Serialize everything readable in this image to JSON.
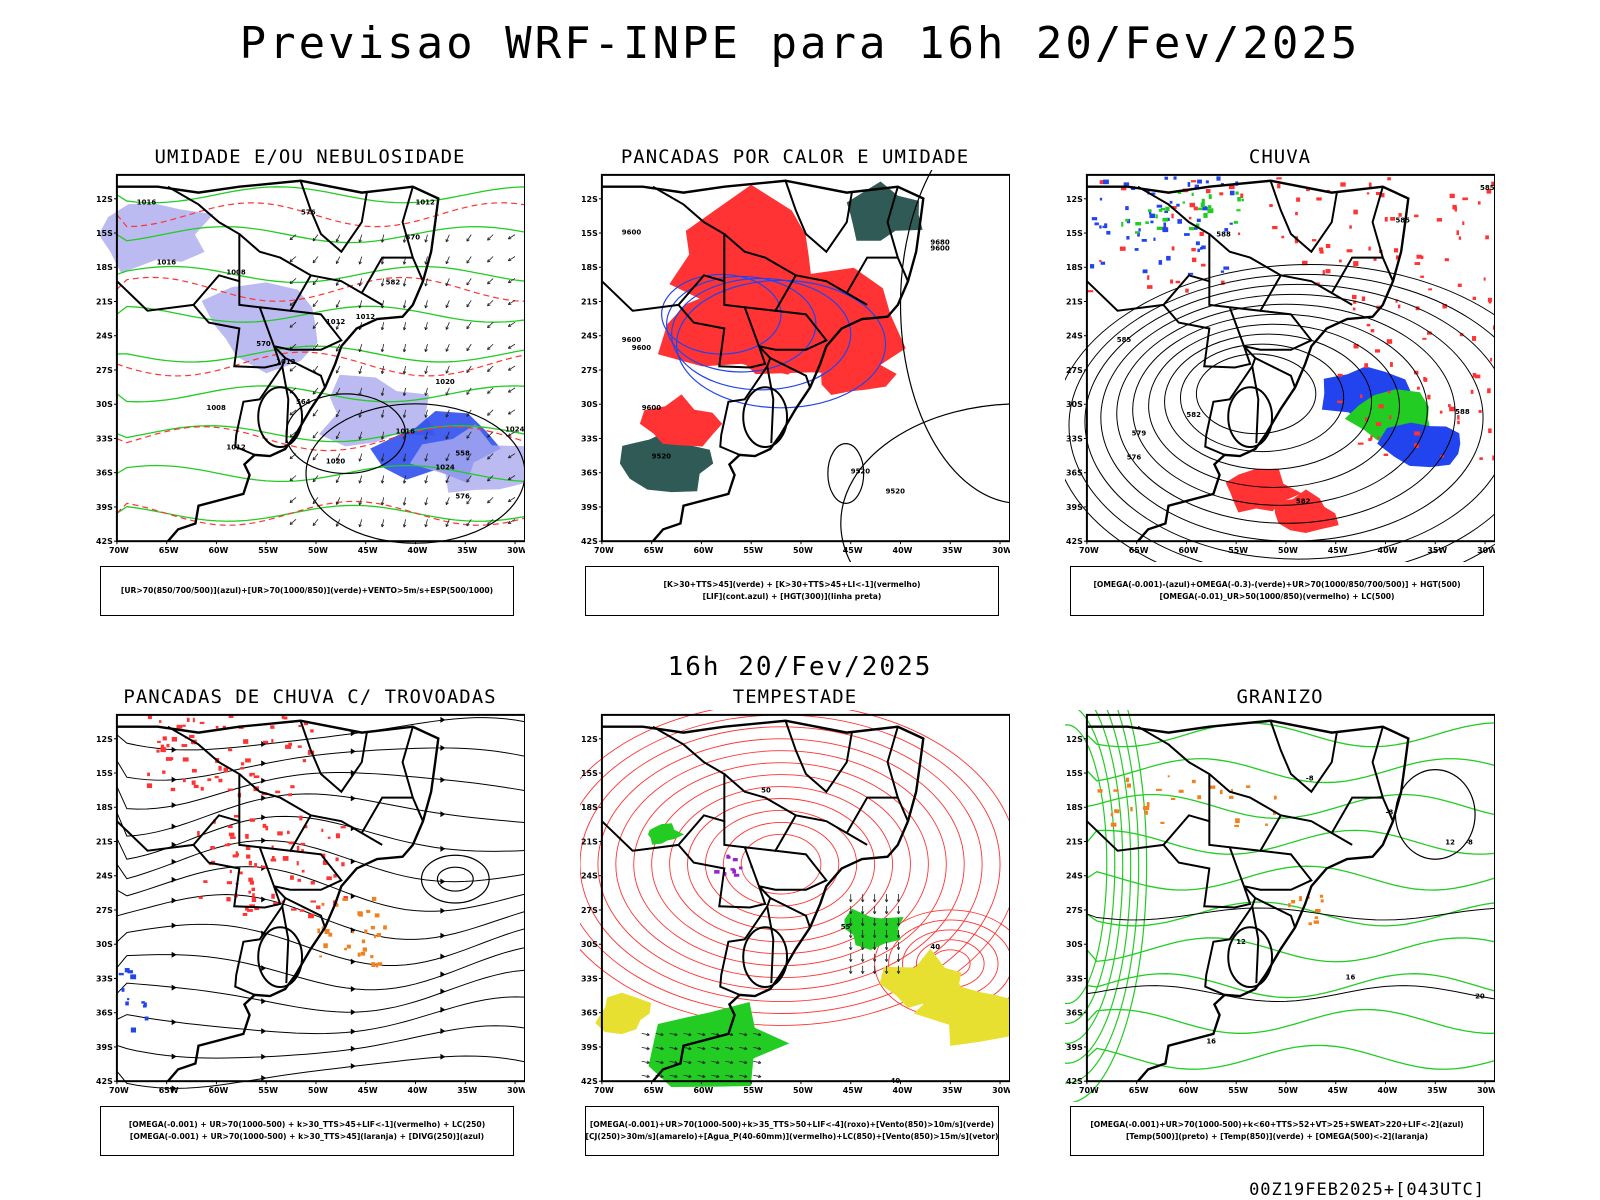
{
  "title": "Previsao WRF-INPE  para 16h 20/Fev/2025",
  "subtitle": "16h 20/Fev/2025",
  "footer": "00Z19FEB2025+[043UTC]",
  "axes": {
    "lat_labels": [
      "12S",
      "15S",
      "18S",
      "21S",
      "24S",
      "27S",
      "30S",
      "33S",
      "36S",
      "39S",
      "42S"
    ],
    "lon_labels": [
      "70W",
      "65W",
      "60W",
      "55W",
      "50W",
      "45W",
      "40W",
      "35W",
      "30W"
    ]
  },
  "colors": {
    "border": "#000000",
    "red": "#ff3333",
    "green": "#22cc22",
    "blue": "#2244ee",
    "lavender": "#aaaaee",
    "darkteal": "#2f5a55",
    "yellow": "#e8e030",
    "orange": "#f08020",
    "purple": "#9922cc"
  },
  "panels": [
    {
      "title": "UMIDADE E/OU NEBULOSIDADE",
      "legend": [
        "[UR>70(850/700/500)](azul)+[UR>70(1000/850)](verde)+VENTO>5m/s+ESP(500/1000)"
      ],
      "labels": [
        "1012",
        "1016",
        "1008",
        "1012",
        "1012",
        "1012",
        "1016",
        "1020",
        "1020",
        "1024",
        "1024",
        "1012",
        "1008",
        "576",
        "570",
        "582",
        "564",
        "558",
        "576",
        "570",
        "1016"
      ]
    },
    {
      "title": "PANCADAS POR CALOR E UMIDADE",
      "legend": [
        "[K>30+TTS>45](verde) + [K>30+TTS>45+LI<-1](vermelho)",
        "[LIF](cont.azul) + [HGT(300)](linha preta)"
      ],
      "labels": [
        "9600",
        "9680",
        "9600",
        "9600",
        "9600",
        "9600",
        "9520",
        "9520",
        "9520"
      ]
    },
    {
      "title": "CHUVA",
      "legend": [
        "[OMEGA(-0.001)-(azul)+OMEGA(-0.3)-(verde)+UR>70(1000/850/700/500)] + HGT(500)",
        "[OMEGA(-0.01)_UR>50(1000/850)(vermelho) + LC(500)"
      ],
      "labels": [
        "585",
        "585",
        "588",
        "585",
        "582",
        "579",
        "576",
        "588",
        "582"
      ]
    },
    {
      "title": "PANCADAS DE CHUVA C/ TROVOADAS",
      "legend": [
        "[OMEGA(-0.001) + UR>70(1000-500) + k>30_TTS>45+LIF<-1](vermelho) + LC(250)",
        "[OMEGA(-0.001) + UR>70(1000-500) + k>30_TTS>45](laranja) + [DIVG(250)](azul)"
      ],
      "labels": []
    },
    {
      "title": "TEMPESTADE",
      "legend": [
        "[OMEGA(-0.001)+UR>70(1000-500)+k>35_TTS>50+LIF<-4](roxo)+[Vento(850)>10m/s](verde)",
        "[CJ(250)>30m/s](amarelo)+[Agua_P(40-60mm)](vermelho)+LC(850)+[Vento(850)>15m/s](vetor)"
      ],
      "labels": [
        "40",
        "40",
        "50",
        "55"
      ]
    },
    {
      "title": "GRANIZO",
      "legend": [
        "[OMEGA(-0.001)+UR>70(1000-500)+k<60+TTS>52+VT>25+SWEAT>220+LIF<-2](azul)",
        "[Temp(500)](preto) + [Temp(850)](verde) + [OMEGA(500)<-2](laranja)"
      ],
      "labels": [
        "12",
        "12",
        "16",
        "16",
        "20",
        "-8",
        "-8",
        "-8"
      ]
    }
  ]
}
